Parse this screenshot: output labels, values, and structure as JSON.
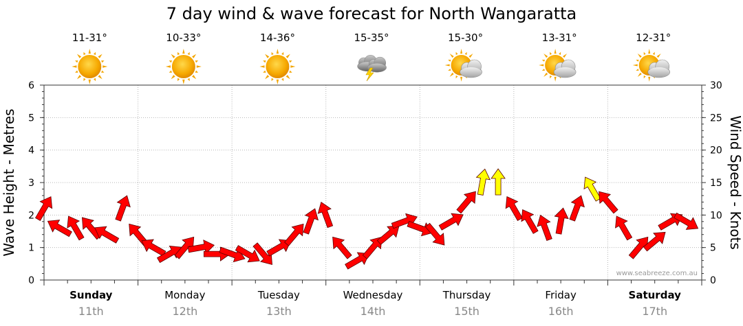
{
  "chart_data": {
    "type": "scatter",
    "title": "7 day wind & wave forecast for North Wangaratta",
    "ylabel_left": "Wave Height - Metres",
    "ylabel_right": "Wind Speed - Knots",
    "ylim_left": [
      0,
      6
    ],
    "ylim_right": [
      0,
      30
    ],
    "yticks_left": [
      "0",
      "1",
      "2",
      "3",
      "4",
      "5",
      "6"
    ],
    "yticks_right": [
      "0",
      "5",
      "10",
      "15",
      "20",
      "25",
      "30"
    ],
    "watermark": "www.seabreeze.com.au",
    "grid": true,
    "days": [
      {
        "name": "Sunday",
        "date": "11th",
        "temp": "11-31°",
        "weather_icon": "sunny-icon",
        "bold": true
      },
      {
        "name": "Monday",
        "date": "12th",
        "temp": "10-33°",
        "weather_icon": "sunny-icon",
        "bold": false
      },
      {
        "name": "Tuesday",
        "date": "13th",
        "temp": "14-36°",
        "weather_icon": "sunny-icon",
        "bold": false
      },
      {
        "name": "Wednesday",
        "date": "14th",
        "temp": "15-35°",
        "weather_icon": "thunderstorm-icon",
        "bold": false
      },
      {
        "name": "Thursday",
        "date": "15th",
        "temp": "15-30°",
        "weather_icon": "partly-cloudy-icon",
        "bold": false
      },
      {
        "name": "Friday",
        "date": "16th",
        "temp": "13-31°",
        "weather_icon": "partly-cloudy-icon",
        "bold": false
      },
      {
        "name": "Saturday",
        "date": "17th",
        "temp": "12-31°",
        "weather_icon": "partly-cloudy-icon",
        "bold": true
      }
    ],
    "series": [
      {
        "name": "Wind Speed - Knots",
        "marker": "wind-arrow",
        "color_low": "#ff0000",
        "color_high": "#ffff00",
        "high_threshold_knots": 13,
        "x_hours": [
          0,
          4,
          8,
          12,
          16,
          20,
          24,
          28,
          32,
          36,
          40,
          44,
          48,
          52,
          56,
          60,
          64,
          68,
          72,
          76,
          80,
          84,
          88,
          92,
          96,
          100,
          104,
          108,
          112,
          116,
          120,
          124,
          128,
          132,
          136,
          140,
          144,
          148,
          152,
          156,
          160,
          164
        ],
        "knots": [
          11,
          8,
          8,
          8,
          7,
          11,
          7,
          5,
          4,
          5,
          5,
          4,
          4,
          4,
          4,
          5,
          7,
          9,
          10,
          5,
          3,
          5,
          7,
          9,
          8,
          7,
          9,
          12,
          15,
          15,
          11,
          9,
          8,
          9,
          11,
          14,
          12,
          8,
          5,
          6,
          9,
          9
        ],
        "direction_deg": [
          30,
          300,
          330,
          320,
          300,
          20,
          320,
          300,
          60,
          40,
          80,
          90,
          110,
          120,
          140,
          60,
          40,
          20,
          340,
          320,
          60,
          40,
          50,
          70,
          110,
          140,
          60,
          40,
          10,
          0,
          330,
          330,
          340,
          10,
          20,
          330,
          320,
          330,
          40,
          50,
          60,
          120
        ]
      }
    ]
  }
}
